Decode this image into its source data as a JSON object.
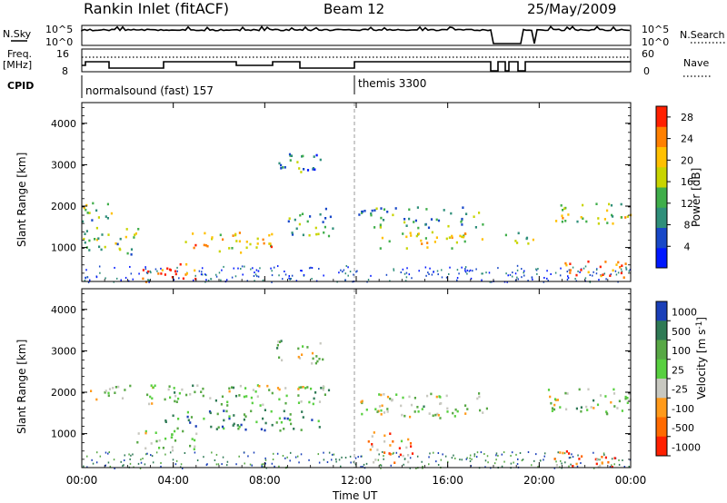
{
  "header": {
    "station": "Rankin Inlet (fitACF)",
    "beam": "Beam 12",
    "date": "25/May/2009"
  },
  "strip_labels": {
    "nsky": "N.Sky",
    "nsky_scale_top": "10^5",
    "nsky_scale_bot": "10^0",
    "freq": "Freq.",
    "freq_unit": "[MHz]",
    "freq_top": "16",
    "freq_bot": "8",
    "cpid": "CPID",
    "nsearch": "N.Search",
    "nsearch_scale_top": "10^5",
    "nsearch_scale_bot": "10^0",
    "nave": "Nave",
    "nave_top": "60",
    "nave_bot": "0"
  },
  "cpid_segments": [
    {
      "label": "normalsound (fast) 157",
      "start_hour": 0
    },
    {
      "label": "themis 3300",
      "start_hour": 12
    }
  ],
  "chart_data": [
    {
      "type": "heatmap",
      "parameter": "Power",
      "ylabel": "Slant Range [km]",
      "colorbar_label": "Power [dB]",
      "xlim_hours": [
        0,
        24
      ],
      "ylim_km": [
        180,
        4500
      ],
      "yticks": [
        1000,
        2000,
        3000,
        4000
      ],
      "colorbar_ticks": [
        4,
        8,
        12,
        16,
        20,
        24,
        28
      ],
      "colorbar_range": [
        0,
        30
      ],
      "colors": [
        "#0018ff",
        "#1848c8",
        "#2f8f7a",
        "#3fae4a",
        "#c8d400",
        "#ffc000",
        "#ff8000",
        "#ff2000"
      ],
      "regions": [
        {
          "hours": [
            0.0,
            1.5
          ],
          "km": [
            1650,
            2150
          ],
          "level": 0.45
        },
        {
          "hours": [
            0.0,
            2.5
          ],
          "km": [
            850,
            1500
          ],
          "level": 0.45
        },
        {
          "hours": [
            2.5,
            5.0
          ],
          "km": [
            180,
            650
          ],
          "level": 0.9
        },
        {
          "hours": [
            4.5,
            8.5
          ],
          "km": [
            900,
            1400
          ],
          "level": 0.7
        },
        {
          "hours": [
            8.5,
            10.5
          ],
          "km": [
            2700,
            3300
          ],
          "level": 0.3
        },
        {
          "hours": [
            9.0,
            11.0
          ],
          "km": [
            1300,
            2000
          ],
          "level": 0.35
        },
        {
          "hours": [
            12.0,
            17.5
          ],
          "km": [
            1500,
            2000
          ],
          "level": 0.35
        },
        {
          "hours": [
            13.0,
            17.5
          ],
          "km": [
            1000,
            1400
          ],
          "level": 0.6
        },
        {
          "hours": [
            18.5,
            20.0
          ],
          "km": [
            1100,
            1400
          ],
          "level": 0.45
        },
        {
          "hours": [
            20.5,
            24.0
          ],
          "km": [
            1600,
            2100
          ],
          "level": 0.55
        },
        {
          "hours": [
            21.0,
            23.5
          ],
          "km": [
            300,
            700
          ],
          "level": 0.85
        },
        {
          "hours": [
            23.5,
            24.0
          ],
          "km": [
            300,
            700
          ],
          "level": 0.95
        }
      ]
    },
    {
      "type": "heatmap",
      "parameter": "Velocity",
      "ylabel": "Slant Range [km]",
      "colorbar_label": "Velocity [m s^-1]",
      "xlabel": "Time UT",
      "xlim_hours": [
        0,
        24
      ],
      "xticks": [
        "00:00",
        "04:00",
        "08:00",
        "12:00",
        "16:00",
        "20:00",
        "00:00"
      ],
      "ylim_km": [
        180,
        4500
      ],
      "yticks": [
        1000,
        2000,
        3000,
        4000
      ],
      "colorbar_ticks": [
        "1000",
        "500",
        "100",
        "25",
        "-25",
        "-100",
        "-500",
        "-1000"
      ],
      "colors": [
        "#1a3fb8",
        "#2f7a55",
        "#58a845",
        "#58d040",
        "#c8c8c0",
        "#ff9a1a",
        "#ff6a00",
        "#ff2000"
      ],
      "regions": [
        {
          "hours": [
            0.0,
            11.0
          ],
          "km": [
            1700,
            2200
          ],
          "level": 0.45
        },
        {
          "hours": [
            2.0,
            5.0
          ],
          "km": [
            600,
            1100
          ],
          "level": 0.45
        },
        {
          "hours": [
            3.5,
            10.5
          ],
          "km": [
            1100,
            1600
          ],
          "level": 0.25
        },
        {
          "hours": [
            8.5,
            10.5
          ],
          "km": [
            2700,
            3300
          ],
          "level": 0.45
        },
        {
          "hours": [
            12.0,
            18.0
          ],
          "km": [
            1400,
            2000
          ],
          "level": 0.45
        },
        {
          "hours": [
            12.5,
            14.5
          ],
          "km": [
            300,
            1100
          ],
          "level": 0.7
        },
        {
          "hours": [
            20.0,
            24.0
          ],
          "km": [
            1500,
            2100
          ],
          "level": 0.45
        },
        {
          "hours": [
            20.5,
            23.5
          ],
          "km": [
            200,
            600
          ],
          "level": 0.8
        }
      ]
    }
  ]
}
